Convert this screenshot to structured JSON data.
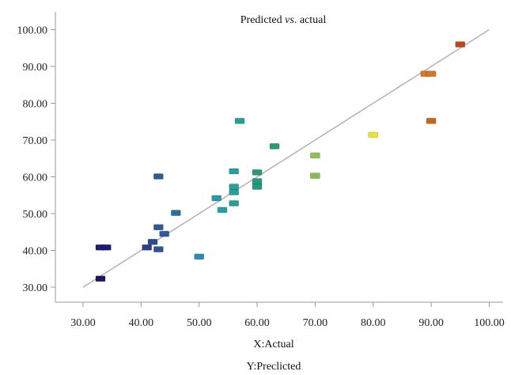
{
  "chart_data": {
    "type": "scatter",
    "title_main": "Predicted ",
    "title_italic": "vs",
    "title_end": ". actual",
    "xlabel": "X:Actual",
    "ylabel": "Y:Preclicted",
    "xlim": [
      25,
      101
    ],
    "ylim": [
      25,
      101
    ],
    "xticks": [
      "30.00",
      "40.00",
      "50.00",
      "60.00",
      "70.00",
      "80.00",
      "90.00",
      "100.00"
    ],
    "yticks": [
      "30.00",
      "40.00",
      "50.00",
      "60.00",
      "70.00",
      "80.00",
      "90.00",
      "100.00"
    ],
    "grid": false,
    "legend": "none",
    "reference_line": {
      "from": [
        30,
        30
      ],
      "to": [
        100,
        100
      ],
      "color": "#b5b5b5"
    },
    "points": [
      {
        "x": 33.0,
        "y": 32.3,
        "color": "#1c1464"
      },
      {
        "x": 33.0,
        "y": 40.8,
        "color": "#1e1a78"
      },
      {
        "x": 34.0,
        "y": 40.8,
        "color": "#1e1a78"
      },
      {
        "x": 41.0,
        "y": 40.8,
        "color": "#2c3f8a"
      },
      {
        "x": 42.0,
        "y": 42.3,
        "color": "#2f4a90"
      },
      {
        "x": 43.0,
        "y": 40.3,
        "color": "#315293"
      },
      {
        "x": 43.0,
        "y": 46.3,
        "color": "#305896"
      },
      {
        "x": 44.0,
        "y": 44.5,
        "color": "#2e5c98"
      },
      {
        "x": 43.0,
        "y": 60.1,
        "color": "#2e5c98"
      },
      {
        "x": 46.0,
        "y": 50.2,
        "color": "#2a6fa0"
      },
      {
        "x": 50.0,
        "y": 38.3,
        "color": "#2d8ab0"
      },
      {
        "x": 53.0,
        "y": 54.2,
        "color": "#2a9aa8"
      },
      {
        "x": 54.0,
        "y": 51.0,
        "color": "#29a0a0"
      },
      {
        "x": 56.0,
        "y": 61.5,
        "color": "#26a29b"
      },
      {
        "x": 56.0,
        "y": 57.3,
        "color": "#26a29b"
      },
      {
        "x": 56.0,
        "y": 55.8,
        "color": "#27a095"
      },
      {
        "x": 56.0,
        "y": 52.8,
        "color": "#27a095"
      },
      {
        "x": 57.0,
        "y": 75.2,
        "color": "#25a090"
      },
      {
        "x": 60.0,
        "y": 61.2,
        "color": "#269a80"
      },
      {
        "x": 60.0,
        "y": 58.8,
        "color": "#269a80"
      },
      {
        "x": 60.0,
        "y": 57.3,
        "color": "#279880"
      },
      {
        "x": 63.0,
        "y": 68.3,
        "color": "#2a9a70"
      },
      {
        "x": 70.0,
        "y": 65.8,
        "color": "#8ec05a"
      },
      {
        "x": 70.0,
        "y": 60.3,
        "color": "#8ab855"
      },
      {
        "x": 80.0,
        "y": 71.4,
        "color": "#e8e23a"
      },
      {
        "x": 89.0,
        "y": 88.0,
        "color": "#d47a22"
      },
      {
        "x": 90.0,
        "y": 88.0,
        "color": "#d27822"
      },
      {
        "x": 90.0,
        "y": 75.2,
        "color": "#c8661e"
      },
      {
        "x": 95.0,
        "y": 96.0,
        "color": "#b84a1e"
      }
    ]
  }
}
